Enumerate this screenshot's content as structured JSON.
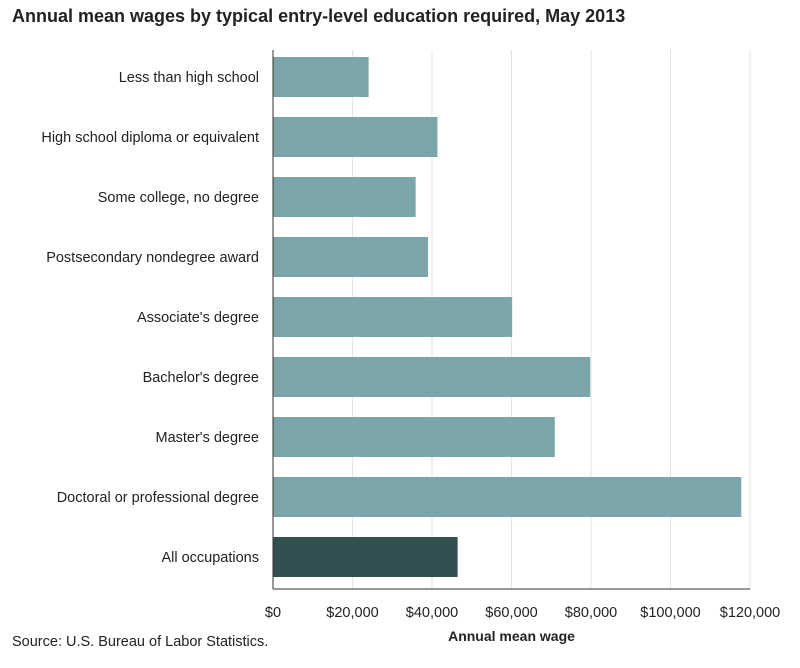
{
  "chart_data": {
    "type": "bar",
    "orientation": "horizontal",
    "title": "Annual mean wages by typical entry-level education required, May 2013",
    "categories": [
      "Less than high school",
      "High school diploma or equivalent",
      "Some college, no degree",
      "Postsecondary nondegree award",
      "Associate's degree",
      "Bachelor's degree",
      "Master's degree",
      "Doctoral or professional degree",
      "All occupations"
    ],
    "values": [
      24050,
      41380,
      35890,
      39000,
      60170,
      79800,
      70880,
      117800,
      46440
    ],
    "xlabel": "Annual mean wage",
    "ylabel": "",
    "xlim": [
      0,
      120000
    ],
    "xticks": [
      0,
      20000,
      40000,
      60000,
      80000,
      100000,
      120000
    ],
    "xtick_labels": [
      "$0",
      "$20,000",
      "$40,000",
      "$60,000",
      "$80,000",
      "$100,000",
      "$120,000"
    ],
    "grid": true,
    "colors": {
      "bar": "#7aa6aa",
      "highlight_bar": "#344f52",
      "grid": "#e3e3e3",
      "axis": "#333333"
    },
    "highlight_index": 8
  },
  "source": "Source: U.S. Bureau of Labor Statistics."
}
